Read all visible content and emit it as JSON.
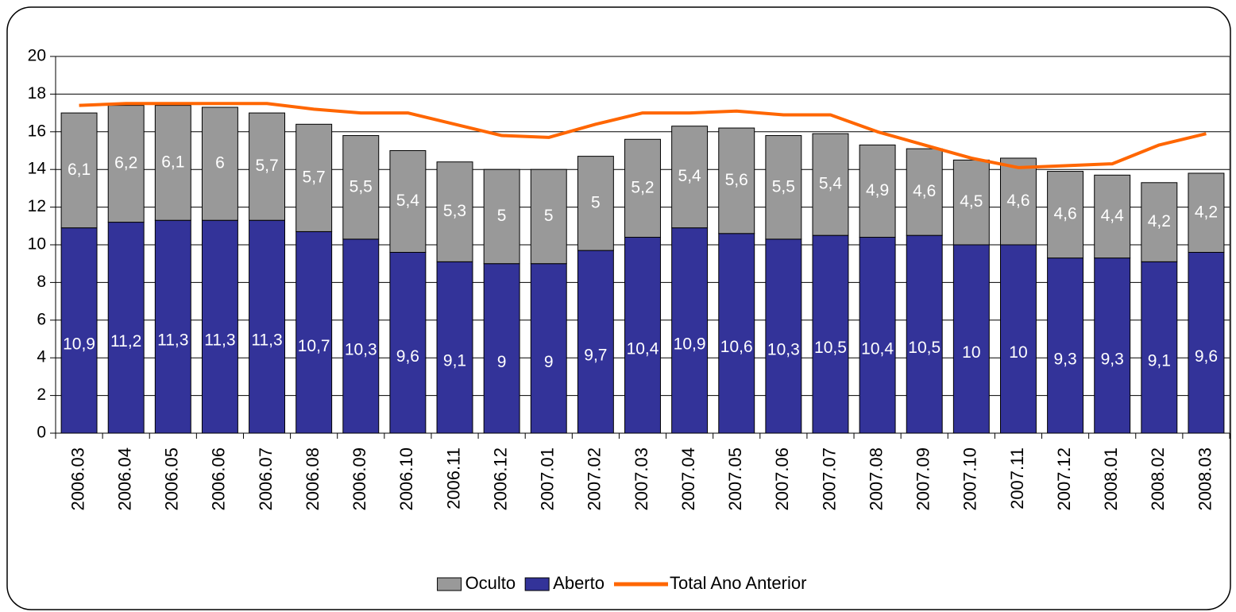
{
  "chart_data": {
    "type": "bar",
    "stacked": true,
    "categories": [
      "2006.03",
      "2006.04",
      "2006.05",
      "2006.06",
      "2006.07",
      "2006.08",
      "2006.09",
      "2006.10",
      "2006.11",
      "2006.12",
      "2007.01",
      "2007.02",
      "2007.03",
      "2007.04",
      "2007.05",
      "2007.06",
      "2007.07",
      "2007.08",
      "2007.09",
      "2007.10",
      "2007.11",
      "2007.12",
      "2008.01",
      "2008.02",
      "2008.03"
    ],
    "series": [
      {
        "name": "Oculto",
        "type": "bar",
        "color": "#999999",
        "values": [
          6.1,
          6.2,
          6.1,
          6,
          5.7,
          5.7,
          5.5,
          5.4,
          5.3,
          5,
          5,
          5,
          5.2,
          5.4,
          5.6,
          5.5,
          5.4,
          4.9,
          4.6,
          4.5,
          4.6,
          4.6,
          4.4,
          4.2,
          4.2
        ],
        "value_labels": [
          "6,1",
          "6,2",
          "6,1",
          "6",
          "5,7",
          "5,7",
          "5,5",
          "5,4",
          "5,3",
          "5",
          "5",
          "5",
          "5,2",
          "5,4",
          "5,6",
          "5,5",
          "5,4",
          "4,9",
          "4,6",
          "4,5",
          "4,6",
          "4,6",
          "4,4",
          "4,2",
          "4,2"
        ]
      },
      {
        "name": "Aberto",
        "type": "bar",
        "color": "#333399",
        "values": [
          10.9,
          11.2,
          11.3,
          11.3,
          11.3,
          10.7,
          10.3,
          9.6,
          9.1,
          9,
          9,
          9.7,
          10.4,
          10.9,
          10.6,
          10.3,
          10.5,
          10.4,
          10.5,
          10,
          10,
          9.3,
          9.3,
          9.1,
          9.6
        ],
        "value_labels": [
          "10,9",
          "11,2",
          "11,3",
          "11,3",
          "11,3",
          "10,7",
          "10,3",
          "9,6",
          "9,1",
          "9",
          "9",
          "9,7",
          "10,4",
          "10,9",
          "10,6",
          "10,3",
          "10,5",
          "10,4",
          "10,5",
          "10",
          "10",
          "9,3",
          "9,3",
          "9,1",
          "9,6"
        ]
      },
      {
        "name": "Total Ano Anterior",
        "type": "line",
        "color": "#ff6600",
        "values": [
          17.4,
          17.5,
          17.5,
          17.5,
          17.5,
          17.2,
          17.0,
          17.0,
          16.4,
          15.8,
          15.7,
          16.4,
          17.0,
          17.0,
          17.1,
          16.9,
          16.9,
          16.0,
          15.3,
          14.6,
          14.1,
          14.2,
          14.3,
          15.3,
          15.9
        ]
      }
    ],
    "ylim": [
      0,
      20
    ],
    "yticks": [
      0,
      2,
      4,
      6,
      8,
      10,
      12,
      14,
      16,
      18,
      20
    ],
    "grid": true,
    "legend": "bottom"
  }
}
